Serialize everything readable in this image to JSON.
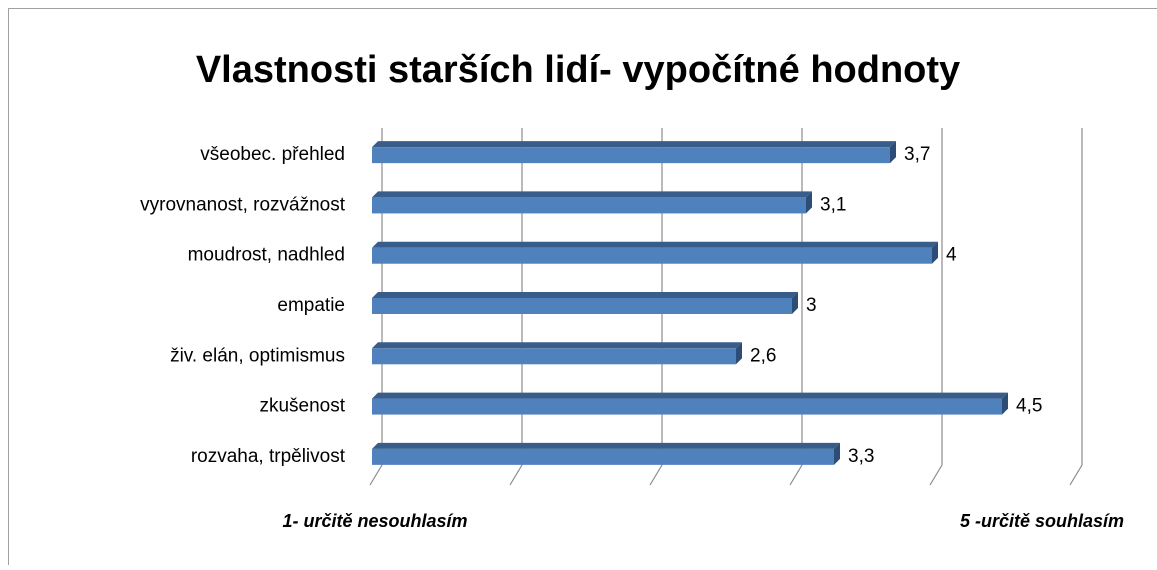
{
  "chart_data": {
    "type": "bar",
    "orientation": "horizontal",
    "title": "Vlastnosti starších lidí- vypočítné hodnoty",
    "categories": [
      "všeobec. přehled",
      "vyrovnanost, rozvážnost",
      "moudrost, nadhled",
      "empatie",
      "živ. elán, optimismus",
      "zkušenost",
      "rozvaha, trpělivost"
    ],
    "values": [
      3.7,
      3.1,
      4,
      3,
      2.6,
      4.5,
      3.3
    ],
    "value_labels": [
      "3,7",
      "3,1",
      "4",
      "3",
      "2,6",
      "4,5",
      "3,3"
    ],
    "color": "#4f81bd",
    "xlim": [
      0,
      5
    ],
    "xticks": [
      0,
      1,
      2,
      3,
      4,
      5
    ],
    "grid": true,
    "annotations": [
      "1- určitě nesouhlasím",
      "5 -určitě souhlasím"
    ]
  }
}
